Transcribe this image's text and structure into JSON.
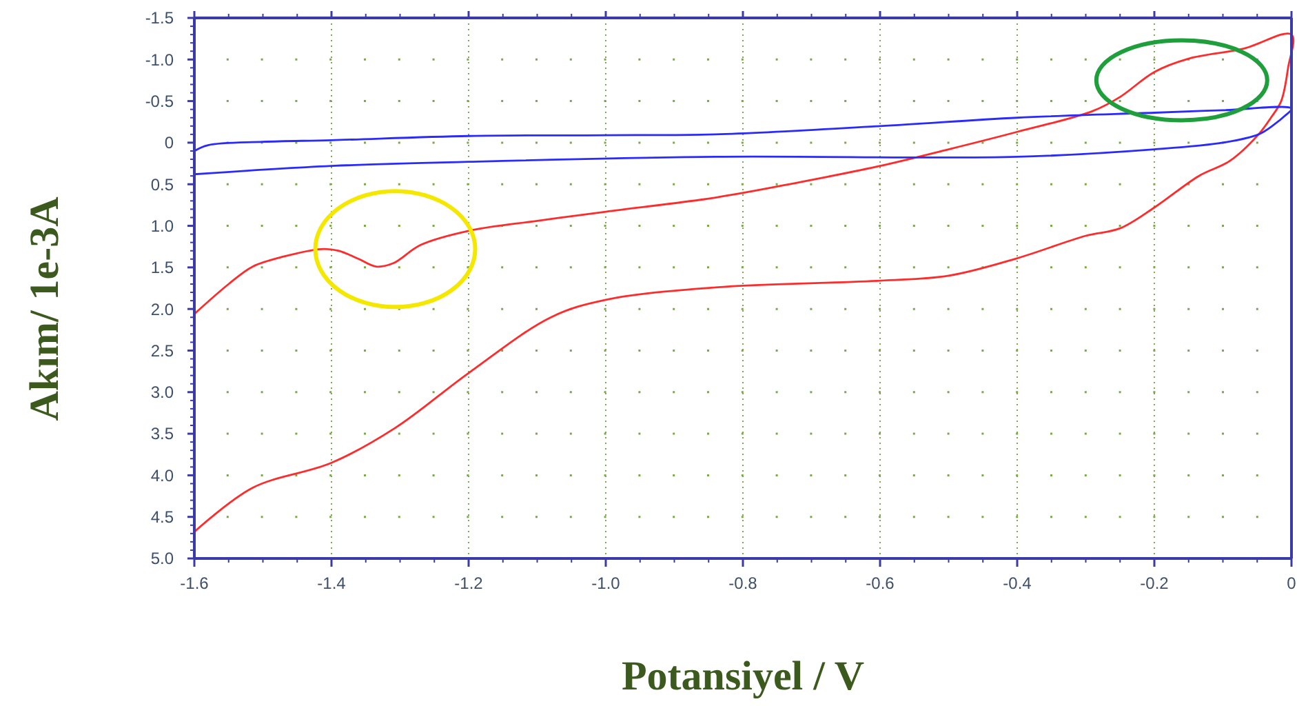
{
  "chart_data": {
    "type": "line",
    "xlabel": "Potansiyel / V",
    "ylabel": "Akım/ 1e-3A",
    "xlim": [
      -1.6,
      0
    ],
    "xticks": [
      -1.6,
      -1.4,
      -1.2,
      {
        "value": -1.0,
        "label": "-1.0"
      },
      -0.8,
      -0.6,
      -0.4,
      -0.2,
      0
    ],
    "ylim": [
      5.0,
      -1.5
    ],
    "yticks": [
      -1.5,
      {
        "value": -1.0,
        "label": "-1.0"
      },
      -0.5,
      0,
      0.5,
      {
        "value": 1.0,
        "label": "1.0"
      },
      1.5,
      {
        "value": 2.0,
        "label": "2.0"
      },
      2.5,
      {
        "value": 3.0,
        "label": "3.0"
      },
      3.5,
      {
        "value": 4.0,
        "label": "4.0"
      },
      4.5,
      {
        "value": 5.0,
        "label": "5.0"
      }
    ],
    "grid": true,
    "line_style": "solid",
    "marker": "none",
    "series": [
      {
        "color": "#ff2a2a",
        "x": [
          -1.6,
          -1.55,
          -1.515,
          -1.47,
          -1.415,
          -1.39,
          -1.36,
          -1.335,
          -1.31,
          -1.27,
          -1.2,
          -1.1,
          -1.0,
          -0.84,
          -0.72,
          -0.6,
          -0.5,
          -0.4,
          -0.29,
          -0.25,
          -0.2,
          -0.15,
          -0.07,
          0,
          -0.005,
          -0.015,
          -0.03,
          -0.048,
          -0.09,
          -0.135,
          -0.2,
          -0.25,
          -0.3,
          -0.4,
          -0.5,
          -0.6,
          -0.84,
          -1.0,
          -1.08,
          -1.2,
          -1.307,
          -1.4,
          -1.515,
          -1.6
        ],
        "values": [
          2.06,
          1.7,
          1.49,
          1.37,
          1.28,
          1.3,
          1.4,
          1.49,
          1.45,
          1.23,
          1.06,
          0.94,
          0.83,
          0.66,
          0.48,
          0.28,
          0.08,
          -0.13,
          -0.38,
          -0.55,
          -0.85,
          -1.01,
          -1.13,
          -1.3,
          -0.9,
          -0.5,
          -0.3,
          -0.1,
          0.22,
          0.4,
          0.78,
          1.03,
          1.12,
          1.39,
          1.6,
          1.66,
          1.74,
          1.89,
          2.1,
          2.77,
          3.43,
          3.85,
          4.15,
          4.68
        ]
      },
      {
        "color": "#2a2aff",
        "x": [
          -1.6,
          -1.58,
          -1.5,
          -1.4,
          -1.2,
          -1.0,
          -0.84,
          -0.6,
          -0.4,
          -0.2,
          -0.1,
          0,
          -0.01,
          -0.025,
          -0.048,
          -0.1,
          -0.2,
          -0.4,
          -0.84,
          -1.2,
          -1.4,
          -1.6
        ],
        "values": [
          0.1,
          0.03,
          -0.01,
          -0.03,
          -0.08,
          -0.09,
          -0.1,
          -0.2,
          -0.3,
          -0.36,
          -0.39,
          -0.41,
          -0.32,
          -0.22,
          -0.1,
          0.0,
          0.08,
          0.17,
          0.17,
          0.23,
          0.28,
          0.38
        ]
      }
    ]
  }
}
